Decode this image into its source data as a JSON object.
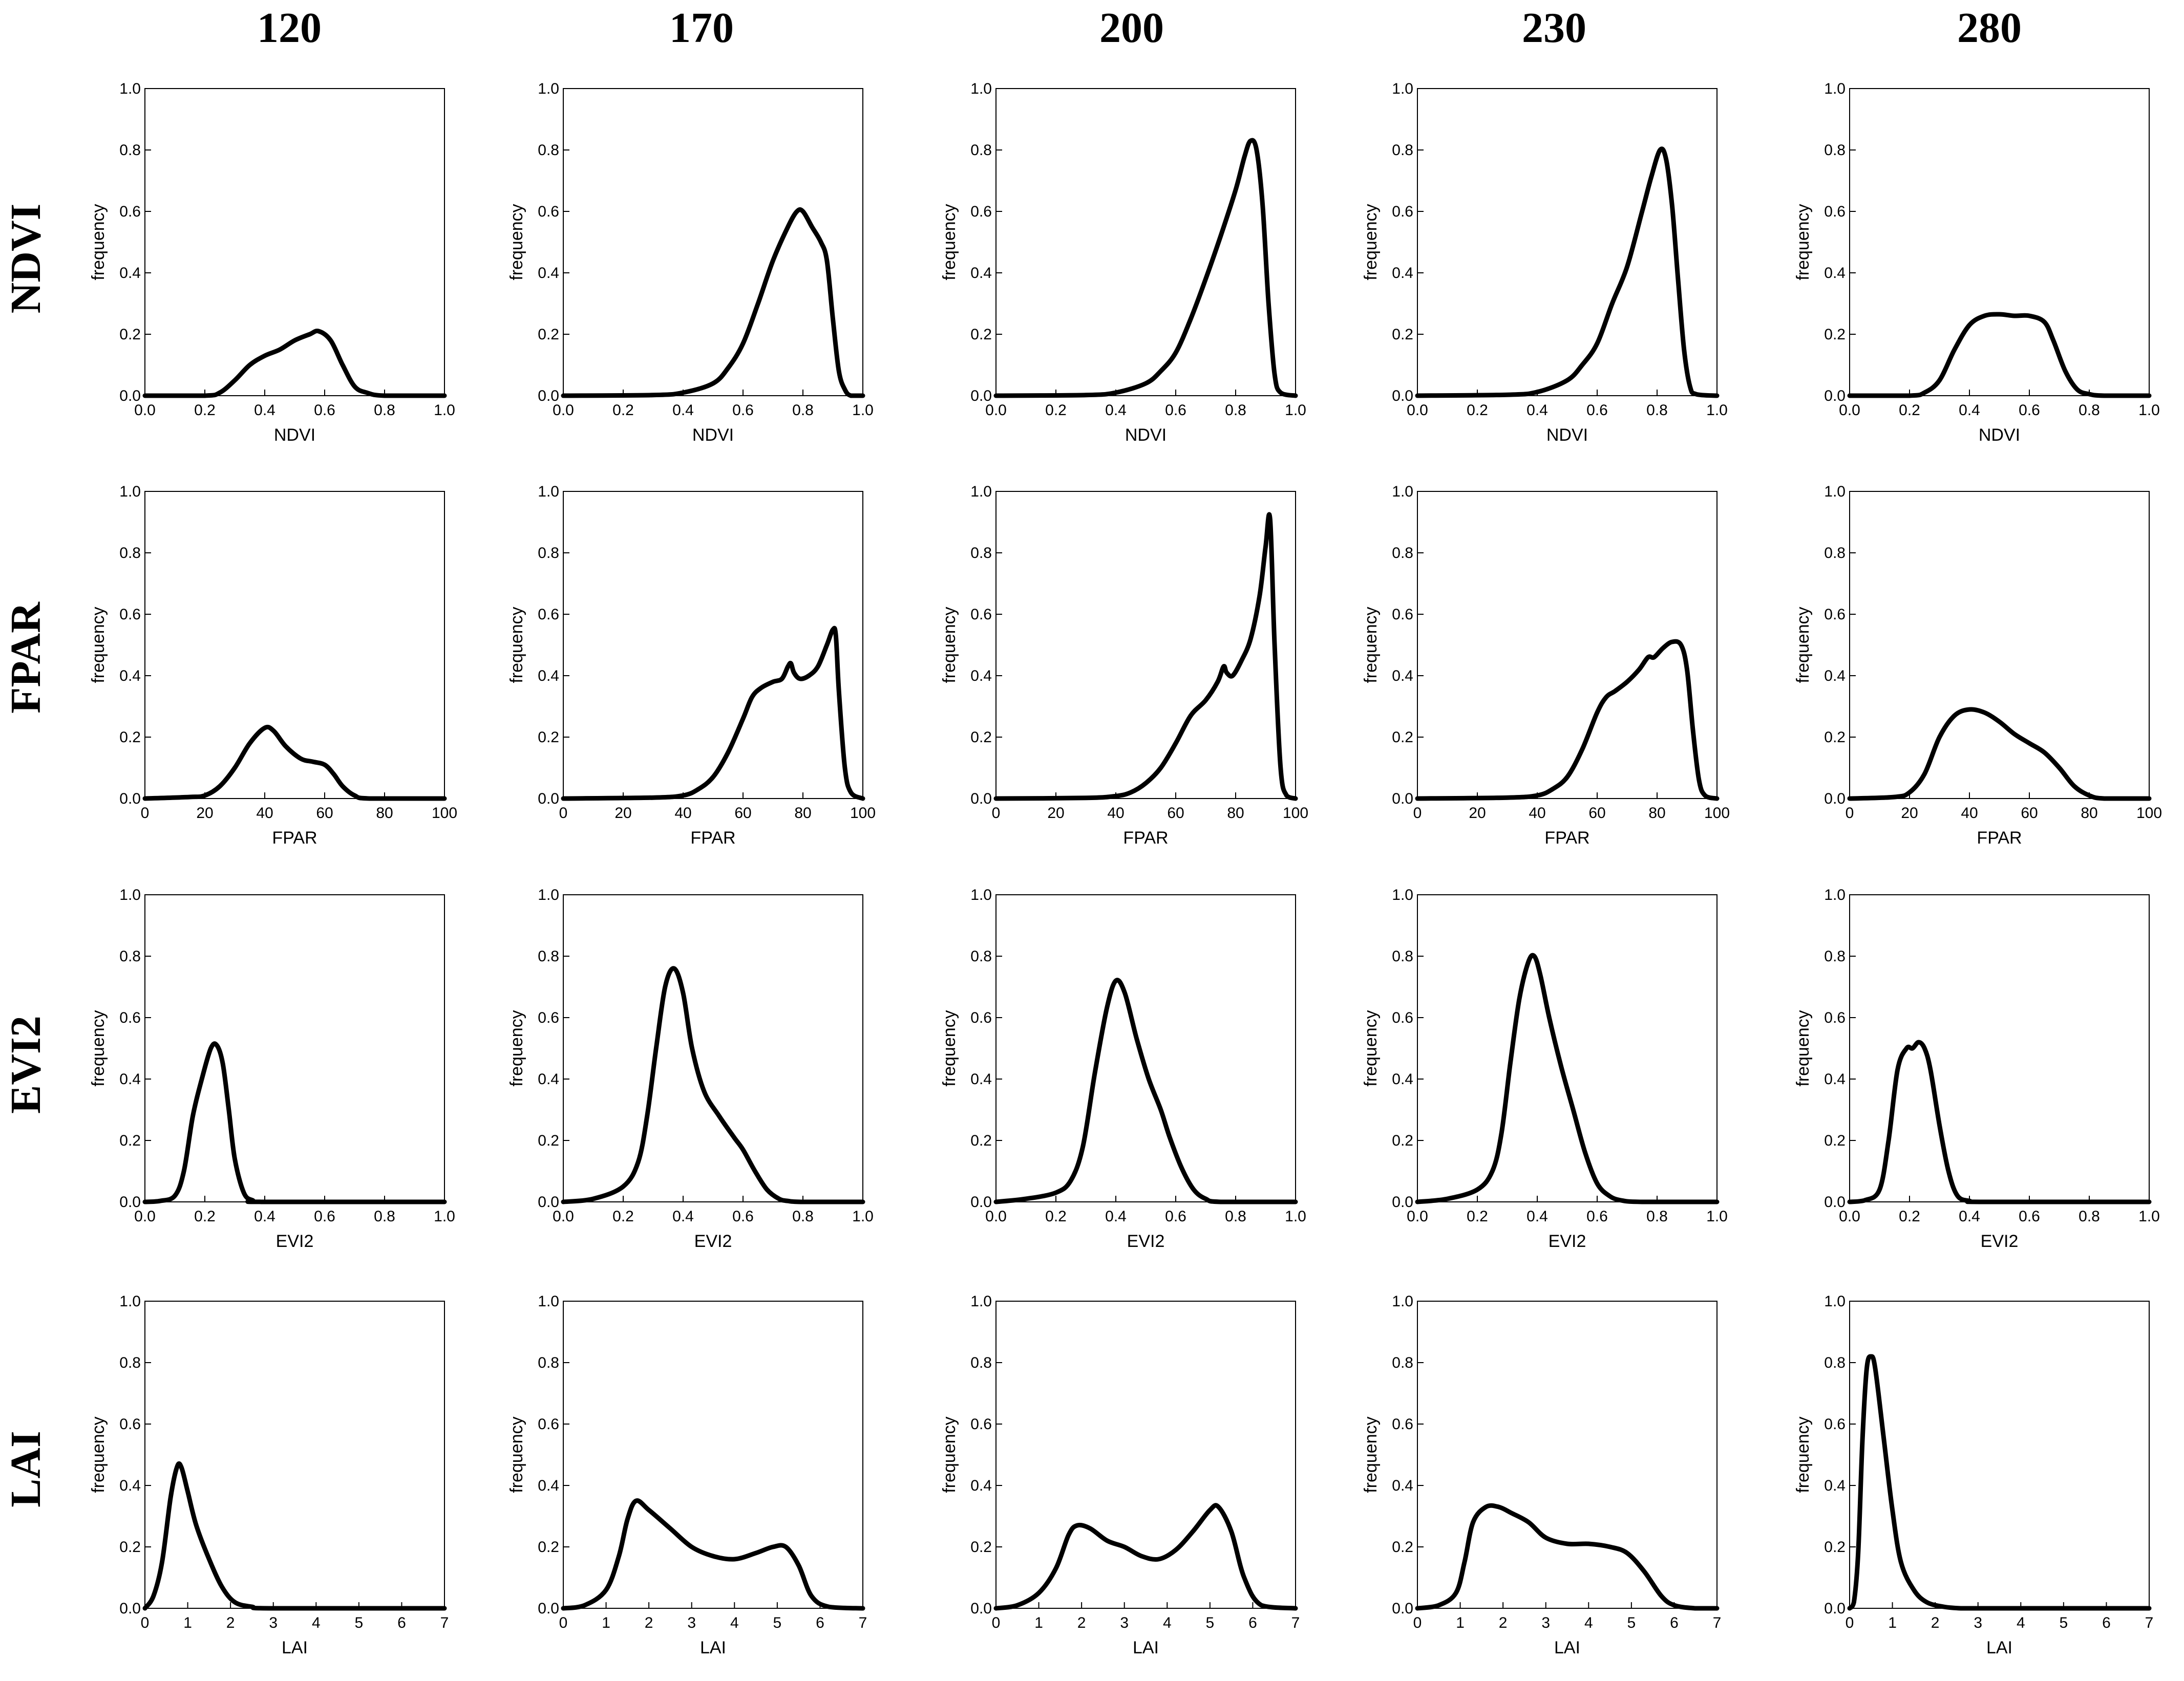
{
  "figure": {
    "column_headers": [
      "120",
      "170",
      "200",
      "230",
      "280"
    ],
    "row_headers": [
      "NDVI",
      "FPAR",
      "EVI2",
      "LAI"
    ],
    "ylabel": "frequency",
    "line_color": "#000000"
  },
  "chart_data": [
    {
      "id": "ndvi-120",
      "type": "line",
      "title": "",
      "xlabel": "NDVI",
      "ylabel": "frequency",
      "xlim": [
        0,
        1
      ],
      "ylim": [
        0,
        1
      ],
      "xticks": [
        "0.0",
        "0.2",
        "0.4",
        "0.6",
        "0.8",
        "1.0"
      ],
      "yticks": [
        "0.0",
        "0.2",
        "0.4",
        "0.6",
        "0.8",
        "1.0"
      ],
      "x": [
        0,
        0.2,
        0.25,
        0.3,
        0.35,
        0.4,
        0.45,
        0.5,
        0.55,
        0.58,
        0.62,
        0.66,
        0.7,
        0.74,
        0.8,
        1.0
      ],
      "y": [
        0,
        0,
        0.01,
        0.05,
        0.1,
        0.13,
        0.15,
        0.18,
        0.2,
        0.21,
        0.18,
        0.1,
        0.03,
        0.01,
        0,
        0
      ]
    },
    {
      "id": "ndvi-170",
      "type": "line",
      "title": "",
      "xlabel": "NDVI",
      "ylabel": "frequency",
      "xlim": [
        0,
        1
      ],
      "ylim": [
        0,
        1
      ],
      "xticks": [
        "0.0",
        "0.2",
        "0.4",
        "0.6",
        "0.8",
        "1.0"
      ],
      "yticks": [
        "0.0",
        "0.2",
        "0.4",
        "0.6",
        "0.8",
        "1.0"
      ],
      "x": [
        0,
        0.3,
        0.4,
        0.5,
        0.55,
        0.6,
        0.65,
        0.7,
        0.75,
        0.78,
        0.8,
        0.83,
        0.86,
        0.88,
        0.9,
        0.92,
        0.94,
        0.96,
        1.0
      ],
      "y": [
        0,
        0.002,
        0.01,
        0.04,
        0.09,
        0.17,
        0.3,
        0.44,
        0.55,
        0.6,
        0.6,
        0.55,
        0.5,
        0.44,
        0.25,
        0.08,
        0.02,
        0,
        0
      ]
    },
    {
      "id": "ndvi-200",
      "type": "line",
      "title": "",
      "xlabel": "NDVI",
      "ylabel": "frequency",
      "xlim": [
        0,
        1
      ],
      "ylim": [
        0,
        1
      ],
      "xticks": [
        "0.0",
        "0.2",
        "0.4",
        "0.6",
        "0.8",
        "1.0"
      ],
      "yticks": [
        "0.0",
        "0.2",
        "0.4",
        "0.6",
        "0.8",
        "1.0"
      ],
      "x": [
        0,
        0.3,
        0.4,
        0.5,
        0.55,
        0.6,
        0.65,
        0.7,
        0.75,
        0.8,
        0.83,
        0.85,
        0.87,
        0.89,
        0.91,
        0.93,
        0.95,
        1.0
      ],
      "y": [
        0,
        0.002,
        0.01,
        0.04,
        0.08,
        0.14,
        0.25,
        0.38,
        0.52,
        0.67,
        0.78,
        0.83,
        0.8,
        0.62,
        0.3,
        0.07,
        0.01,
        0
      ]
    },
    {
      "id": "ndvi-230",
      "type": "line",
      "title": "",
      "xlabel": "NDVI",
      "ylabel": "frequency",
      "xlim": [
        0,
        1
      ],
      "ylim": [
        0,
        1
      ],
      "xticks": [
        "0.0",
        "0.2",
        "0.4",
        "0.6",
        "0.8",
        "1.0"
      ],
      "yticks": [
        "0.0",
        "0.2",
        "0.4",
        "0.6",
        "0.8",
        "1.0"
      ],
      "x": [
        0,
        0.3,
        0.4,
        0.5,
        0.55,
        0.6,
        0.65,
        0.7,
        0.75,
        0.78,
        0.81,
        0.83,
        0.85,
        0.87,
        0.89,
        0.91,
        0.93,
        1.0
      ],
      "y": [
        0,
        0.003,
        0.012,
        0.05,
        0.1,
        0.17,
        0.3,
        0.42,
        0.6,
        0.71,
        0.8,
        0.77,
        0.62,
        0.38,
        0.15,
        0.03,
        0.005,
        0
      ]
    },
    {
      "id": "ndvi-280",
      "type": "line",
      "title": "",
      "xlabel": "NDVI",
      "ylabel": "frequency",
      "xlim": [
        0,
        1
      ],
      "ylim": [
        0,
        1
      ],
      "xticks": [
        "0.0",
        "0.2",
        "0.4",
        "0.6",
        "0.8",
        "1.0"
      ],
      "yticks": [
        "0.0",
        "0.2",
        "0.4",
        "0.6",
        "0.8",
        "1.0"
      ],
      "x": [
        0,
        0.2,
        0.25,
        0.3,
        0.35,
        0.4,
        0.45,
        0.5,
        0.55,
        0.6,
        0.65,
        0.68,
        0.72,
        0.76,
        0.8,
        0.85,
        1.0
      ],
      "y": [
        0,
        0,
        0.01,
        0.05,
        0.15,
        0.23,
        0.26,
        0.265,
        0.26,
        0.26,
        0.24,
        0.18,
        0.08,
        0.02,
        0.005,
        0,
        0
      ]
    },
    {
      "id": "fpar-120",
      "type": "line",
      "title": "",
      "xlabel": "FPAR",
      "ylabel": "frequency",
      "xlim": [
        0,
        100
      ],
      "ylim": [
        0,
        1
      ],
      "xticks": [
        "0",
        "20",
        "40",
        "60",
        "80",
        "100"
      ],
      "yticks": [
        "0.0",
        "0.2",
        "0.4",
        "0.6",
        "0.8",
        "1.0"
      ],
      "x": [
        0,
        15,
        20,
        25,
        30,
        35,
        40,
        43,
        47,
        52,
        56,
        60,
        63,
        66,
        70,
        75,
        100
      ],
      "y": [
        0,
        0.005,
        0.01,
        0.04,
        0.1,
        0.18,
        0.23,
        0.22,
        0.17,
        0.13,
        0.12,
        0.11,
        0.08,
        0.04,
        0.01,
        0,
        0
      ]
    },
    {
      "id": "fpar-170",
      "type": "line",
      "title": "",
      "xlabel": "FPAR",
      "ylabel": "frequency",
      "xlim": [
        0,
        100
      ],
      "ylim": [
        0,
        1
      ],
      "xticks": [
        "0",
        "20",
        "40",
        "60",
        "80",
        "100"
      ],
      "yticks": [
        "0.0",
        "0.2",
        "0.4",
        "0.6",
        "0.8",
        "1.0"
      ],
      "x": [
        0,
        30,
        40,
        45,
        50,
        55,
        60,
        63,
        66,
        70,
        73,
        75,
        76,
        77,
        79,
        82,
        85,
        88,
        90,
        91,
        92,
        94,
        96,
        100
      ],
      "y": [
        0,
        0.003,
        0.01,
        0.03,
        0.07,
        0.15,
        0.26,
        0.33,
        0.36,
        0.38,
        0.39,
        0.43,
        0.44,
        0.41,
        0.39,
        0.4,
        0.43,
        0.5,
        0.55,
        0.53,
        0.35,
        0.1,
        0.02,
        0
      ]
    },
    {
      "id": "fpar-200",
      "type": "line",
      "title": "",
      "xlabel": "FPAR",
      "ylabel": "frequency",
      "xlim": [
        0,
        100
      ],
      "ylim": [
        0,
        1
      ],
      "xticks": [
        "0",
        "20",
        "40",
        "60",
        "80",
        "100"
      ],
      "yticks": [
        "0.0",
        "0.2",
        "0.4",
        "0.6",
        "0.8",
        "1.0"
      ],
      "x": [
        0,
        30,
        40,
        45,
        50,
        55,
        60,
        65,
        70,
        74,
        76,
        77,
        79,
        82,
        85,
        88,
        90,
        91.5,
        93,
        95,
        97,
        100
      ],
      "y": [
        0,
        0.002,
        0.008,
        0.02,
        0.05,
        0.1,
        0.18,
        0.27,
        0.32,
        0.38,
        0.43,
        0.41,
        0.4,
        0.45,
        0.52,
        0.66,
        0.82,
        0.91,
        0.5,
        0.1,
        0.01,
        0
      ]
    },
    {
      "id": "fpar-230",
      "type": "line",
      "title": "",
      "xlabel": "FPAR",
      "ylabel": "frequency",
      "xlim": [
        0,
        100
      ],
      "ylim": [
        0,
        1
      ],
      "xticks": [
        "0",
        "20",
        "40",
        "60",
        "80",
        "100"
      ],
      "yticks": [
        "0.0",
        "0.2",
        "0.4",
        "0.6",
        "0.8",
        "1.0"
      ],
      "x": [
        0,
        30,
        40,
        45,
        50,
        55,
        60,
        63,
        66,
        70,
        74,
        77,
        79,
        82,
        85,
        88,
        90,
        92,
        94,
        96,
        100
      ],
      "y": [
        0,
        0.003,
        0.01,
        0.03,
        0.07,
        0.16,
        0.28,
        0.33,
        0.35,
        0.38,
        0.42,
        0.46,
        0.46,
        0.49,
        0.51,
        0.5,
        0.42,
        0.22,
        0.06,
        0.01,
        0
      ]
    },
    {
      "id": "fpar-280",
      "type": "line",
      "title": "",
      "xlabel": "FPAR",
      "ylabel": "frequency",
      "xlim": [
        0,
        100
      ],
      "ylim": [
        0,
        1
      ],
      "xticks": [
        "0",
        "20",
        "40",
        "60",
        "80",
        "100"
      ],
      "yticks": [
        "0.0",
        "0.2",
        "0.4",
        "0.6",
        "0.8",
        "1.0"
      ],
      "x": [
        0,
        15,
        20,
        25,
        30,
        35,
        40,
        45,
        50,
        55,
        60,
        65,
        70,
        75,
        80,
        85,
        100
      ],
      "y": [
        0,
        0.005,
        0.02,
        0.08,
        0.2,
        0.27,
        0.29,
        0.28,
        0.25,
        0.21,
        0.18,
        0.15,
        0.1,
        0.04,
        0.01,
        0,
        0
      ]
    },
    {
      "id": "evi2-120",
      "type": "line",
      "title": "",
      "xlabel": "EVI2",
      "ylabel": "frequency",
      "xlim": [
        0,
        1
      ],
      "ylim": [
        0,
        1
      ],
      "xticks": [
        "0.0",
        "0.2",
        "0.4",
        "0.6",
        "0.8",
        "1.0"
      ],
      "yticks": [
        "0.0",
        "0.2",
        "0.4",
        "0.6",
        "0.8",
        "1.0"
      ],
      "x": [
        0,
        0.05,
        0.1,
        0.13,
        0.16,
        0.19,
        0.22,
        0.24,
        0.26,
        0.28,
        0.3,
        0.33,
        0.36,
        0.4,
        1.0
      ],
      "y": [
        0,
        0.003,
        0.02,
        0.1,
        0.28,
        0.4,
        0.5,
        0.51,
        0.45,
        0.3,
        0.14,
        0.03,
        0.005,
        0,
        0
      ]
    },
    {
      "id": "evi2-170",
      "type": "line",
      "title": "",
      "xlabel": "EVI2",
      "ylabel": "frequency",
      "xlim": [
        0,
        1
      ],
      "ylim": [
        0,
        1
      ],
      "xticks": [
        "0.0",
        "0.2",
        "0.4",
        "0.6",
        "0.8",
        "1.0"
      ],
      "yticks": [
        "0.0",
        "0.2",
        "0.4",
        "0.6",
        "0.8",
        "1.0"
      ],
      "x": [
        0,
        0.1,
        0.2,
        0.25,
        0.28,
        0.31,
        0.34,
        0.37,
        0.4,
        0.43,
        0.47,
        0.52,
        0.57,
        0.6,
        0.64,
        0.68,
        0.72,
        0.75,
        0.8,
        1.0
      ],
      "y": [
        0,
        0.01,
        0.05,
        0.13,
        0.28,
        0.5,
        0.7,
        0.76,
        0.68,
        0.5,
        0.36,
        0.28,
        0.21,
        0.17,
        0.1,
        0.04,
        0.01,
        0.003,
        0,
        0
      ]
    },
    {
      "id": "evi2-200",
      "type": "line",
      "title": "",
      "xlabel": "EVI2",
      "ylabel": "frequency",
      "xlim": [
        0,
        1
      ],
      "ylim": [
        0,
        1
      ],
      "xticks": [
        "0.0",
        "0.2",
        "0.4",
        "0.6",
        "0.8",
        "1.0"
      ],
      "yticks": [
        "0.0",
        "0.2",
        "0.4",
        "0.6",
        "0.8",
        "1.0"
      ],
      "x": [
        0,
        0.1,
        0.2,
        0.25,
        0.29,
        0.33,
        0.37,
        0.4,
        0.43,
        0.47,
        0.51,
        0.55,
        0.58,
        0.62,
        0.66,
        0.7,
        0.75,
        1.0
      ],
      "y": [
        0,
        0.01,
        0.03,
        0.07,
        0.18,
        0.42,
        0.63,
        0.72,
        0.68,
        0.53,
        0.4,
        0.3,
        0.21,
        0.11,
        0.04,
        0.01,
        0,
        0
      ]
    },
    {
      "id": "evi2-230",
      "type": "line",
      "title": "",
      "xlabel": "EVI2",
      "ylabel": "frequency",
      "xlim": [
        0,
        1
      ],
      "ylim": [
        0,
        1
      ],
      "xticks": [
        "0.0",
        "0.2",
        "0.4",
        "0.6",
        "0.8",
        "1.0"
      ],
      "yticks": [
        "0.0",
        "0.2",
        "0.4",
        "0.6",
        "0.8",
        "1.0"
      ],
      "x": [
        0,
        0.1,
        0.2,
        0.25,
        0.28,
        0.31,
        0.34,
        0.37,
        0.39,
        0.41,
        0.44,
        0.48,
        0.52,
        0.56,
        0.6,
        0.64,
        0.68,
        0.75,
        1.0
      ],
      "y": [
        0,
        0.01,
        0.04,
        0.1,
        0.22,
        0.45,
        0.66,
        0.78,
        0.8,
        0.74,
        0.6,
        0.44,
        0.3,
        0.16,
        0.06,
        0.02,
        0.005,
        0,
        0
      ]
    },
    {
      "id": "evi2-280",
      "type": "line",
      "title": "",
      "xlabel": "EVI2",
      "ylabel": "frequency",
      "xlim": [
        0,
        1
      ],
      "ylim": [
        0,
        1
      ],
      "xticks": [
        "0.0",
        "0.2",
        "0.4",
        "0.6",
        "0.8",
        "1.0"
      ],
      "yticks": [
        "0.0",
        "0.2",
        "0.4",
        "0.6",
        "0.8",
        "1.0"
      ],
      "x": [
        0,
        0.05,
        0.1,
        0.13,
        0.16,
        0.19,
        0.21,
        0.23,
        0.25,
        0.27,
        0.3,
        0.33,
        0.36,
        0.4,
        0.45,
        1.0
      ],
      "y": [
        0,
        0.005,
        0.04,
        0.2,
        0.43,
        0.5,
        0.5,
        0.52,
        0.5,
        0.43,
        0.25,
        0.1,
        0.02,
        0.003,
        0,
        0
      ]
    },
    {
      "id": "lai-120",
      "type": "line",
      "title": "",
      "xlabel": "LAI",
      "ylabel": "frequency",
      "xlim": [
        0,
        7
      ],
      "ylim": [
        0,
        1
      ],
      "xticks": [
        "0",
        "1",
        "2",
        "3",
        "4",
        "5",
        "6",
        "7"
      ],
      "yticks": [
        "0.0",
        "0.2",
        "0.4",
        "0.6",
        "0.8",
        "1.0"
      ],
      "x": [
        0,
        0.2,
        0.4,
        0.6,
        0.75,
        0.85,
        1.0,
        1.2,
        1.5,
        1.8,
        2.1,
        2.5,
        3.0,
        7.0
      ],
      "y": [
        0,
        0.04,
        0.15,
        0.36,
        0.46,
        0.46,
        0.38,
        0.27,
        0.16,
        0.07,
        0.02,
        0.005,
        0,
        0
      ]
    },
    {
      "id": "lai-170",
      "type": "line",
      "title": "",
      "xlabel": "LAI",
      "ylabel": "frequency",
      "xlim": [
        0,
        7
      ],
      "ylim": [
        0,
        1
      ],
      "xticks": [
        "0",
        "1",
        "2",
        "3",
        "4",
        "5",
        "6",
        "7"
      ],
      "yticks": [
        "0.0",
        "0.2",
        "0.4",
        "0.6",
        "0.8",
        "1.0"
      ],
      "x": [
        0,
        0.5,
        1.0,
        1.3,
        1.5,
        1.7,
        2.0,
        2.5,
        3.0,
        3.5,
        4.0,
        4.5,
        4.9,
        5.2,
        5.5,
        5.8,
        6.2,
        7.0
      ],
      "y": [
        0,
        0.01,
        0.06,
        0.17,
        0.29,
        0.35,
        0.32,
        0.26,
        0.2,
        0.17,
        0.16,
        0.18,
        0.2,
        0.2,
        0.14,
        0.04,
        0.005,
        0
      ]
    },
    {
      "id": "lai-200",
      "type": "line",
      "title": "",
      "xlabel": "LAI",
      "ylabel": "frequency",
      "xlim": [
        0,
        7
      ],
      "ylim": [
        0,
        1
      ],
      "xticks": [
        "0",
        "1",
        "2",
        "3",
        "4",
        "5",
        "6",
        "7"
      ],
      "yticks": [
        "0.0",
        "0.2",
        "0.4",
        "0.6",
        "0.8",
        "1.0"
      ],
      "x": [
        0,
        0.5,
        1.0,
        1.4,
        1.7,
        1.9,
        2.2,
        2.6,
        3.0,
        3.4,
        3.8,
        4.2,
        4.6,
        5.0,
        5.2,
        5.5,
        5.8,
        6.2,
        7.0
      ],
      "y": [
        0,
        0.01,
        0.05,
        0.13,
        0.24,
        0.27,
        0.26,
        0.22,
        0.2,
        0.17,
        0.16,
        0.19,
        0.25,
        0.32,
        0.33,
        0.25,
        0.1,
        0.01,
        0
      ]
    },
    {
      "id": "lai-230",
      "type": "line",
      "title": "",
      "xlabel": "LAI",
      "ylabel": "frequency",
      "xlim": [
        0,
        7
      ],
      "ylim": [
        0,
        1
      ],
      "xticks": [
        "0",
        "1",
        "2",
        "3",
        "4",
        "5",
        "6",
        "7"
      ],
      "yticks": [
        "0.0",
        "0.2",
        "0.4",
        "0.6",
        "0.8",
        "1.0"
      ],
      "x": [
        0,
        0.5,
        0.9,
        1.1,
        1.3,
        1.6,
        1.9,
        2.2,
        2.6,
        3.0,
        3.5,
        4.0,
        4.5,
        4.9,
        5.3,
        5.7,
        6.0,
        6.5,
        7.0
      ],
      "y": [
        0,
        0.01,
        0.05,
        0.15,
        0.28,
        0.33,
        0.33,
        0.31,
        0.28,
        0.23,
        0.21,
        0.21,
        0.2,
        0.18,
        0.12,
        0.04,
        0.01,
        0,
        0
      ]
    },
    {
      "id": "lai-280",
      "type": "line",
      "title": "",
      "xlabel": "LAI",
      "ylabel": "frequency",
      "xlim": [
        0,
        7
      ],
      "ylim": [
        0,
        1
      ],
      "xticks": [
        "0",
        "1",
        "2",
        "3",
        "4",
        "5",
        "6",
        "7"
      ],
      "yticks": [
        "0.0",
        "0.2",
        "0.4",
        "0.6",
        "0.8",
        "1.0"
      ],
      "x": [
        0,
        0.1,
        0.2,
        0.3,
        0.4,
        0.5,
        0.6,
        0.8,
        1.0,
        1.2,
        1.5,
        1.8,
        2.2,
        2.6,
        3.0,
        7.0
      ],
      "y": [
        0,
        0.02,
        0.18,
        0.55,
        0.78,
        0.82,
        0.78,
        0.55,
        0.32,
        0.15,
        0.06,
        0.02,
        0.005,
        0,
        0,
        0
      ]
    }
  ]
}
